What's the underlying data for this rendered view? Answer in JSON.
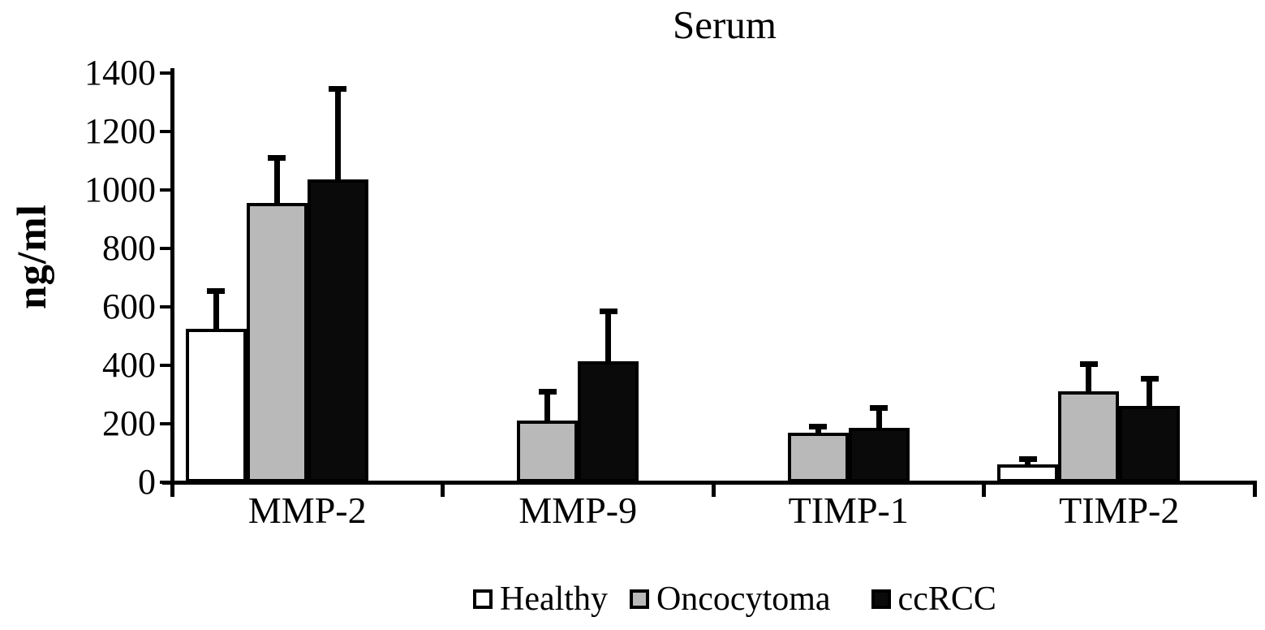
{
  "chart_data": {
    "type": "bar",
    "title": "Serum",
    "ylabel": "ng/ml",
    "xlabel": "",
    "categories": [
      "MMP-2",
      "MMP-9",
      "TIMP-1",
      "TIMP-2"
    ],
    "series": [
      {
        "name": "Healthy",
        "color": "#ffffff",
        "values": [
          525,
          0,
          0,
          60
        ],
        "errors": [
          140,
          0,
          0,
          30
        ]
      },
      {
        "name": "Oncocytoma",
        "color": "#b9b9b9",
        "values": [
          955,
          210,
          170,
          310
        ],
        "errors": [
          165,
          110,
          30,
          105
        ]
      },
      {
        "name": "ccRCC",
        "color": "#0a0a0a",
        "values": [
          1035,
          415,
          185,
          260
        ],
        "errors": [
          320,
          180,
          80,
          105
        ]
      }
    ],
    "ylim": [
      0,
      1400
    ],
    "ytick_step": 200,
    "ytick_labels": [
      "0",
      "200",
      "400",
      "600",
      "800",
      "1000",
      "1200",
      "1400"
    ],
    "error_bars": "upper",
    "grid": false,
    "legend_position": "bottom",
    "axis_color": "#000000",
    "background_color": "#ffffff"
  }
}
